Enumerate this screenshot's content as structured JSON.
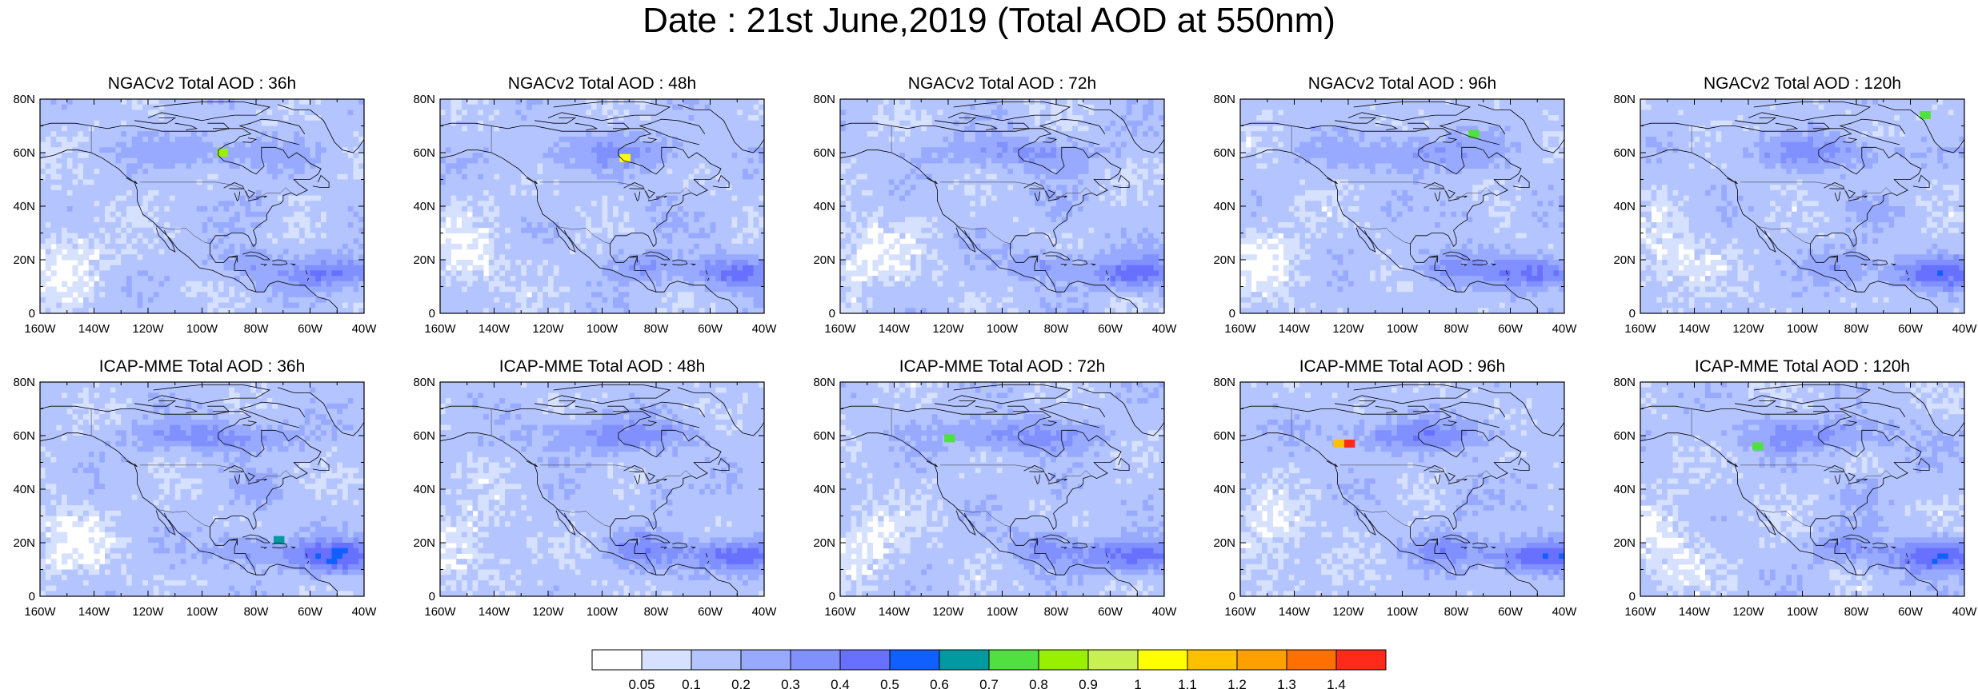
{
  "title": "Date : 21st June,2019 (Total AOD at 550nm)",
  "panels": [
    {
      "title": "NGACv2 Total AOD : 36h",
      "seed": 11,
      "intensity": 0.75
    },
    {
      "title": "NGACv2 Total AOD : 48h",
      "seed": 23,
      "intensity": 0.8
    },
    {
      "title": "NGACv2 Total AOD : 72h",
      "seed": 37,
      "intensity": 0.85
    },
    {
      "title": "NGACv2 Total AOD : 96h",
      "seed": 41,
      "intensity": 0.9
    },
    {
      "title": "NGACv2 Total AOD : 120h",
      "seed": 53,
      "intensity": 0.85
    },
    {
      "title": "ICAP-MME Total AOD : 36h",
      "seed": 61,
      "intensity": 1.0
    },
    {
      "title": "ICAP-MME Total AOD : 48h",
      "seed": 73,
      "intensity": 1.0
    },
    {
      "title": "ICAP-MME Total AOD : 72h",
      "seed": 89,
      "intensity": 1.0
    },
    {
      "title": "ICAP-MME Total AOD : 96h",
      "seed": 97,
      "intensity": 1.05
    },
    {
      "title": "ICAP-MME Total AOD : 120h",
      "seed": 101,
      "intensity": 0.95
    }
  ],
  "axes": {
    "lon_ticks": [
      "160W",
      "140W",
      "120W",
      "100W",
      "80W",
      "60W",
      "40W"
    ],
    "lat_ticks": [
      "80N",
      "60N",
      "40N",
      "20N",
      "0"
    ],
    "lon_range": [
      -160,
      -40
    ],
    "lat_range": [
      0,
      80
    ]
  },
  "colorbar": {
    "levels": [
      "0.05",
      "0.1",
      "0.2",
      "0.3",
      "0.4",
      "0.5",
      "0.6",
      "0.7",
      "0.8",
      "0.9",
      "1",
      "1.1",
      "1.2",
      "1.3",
      "1.4"
    ],
    "colors": [
      "#ffffff",
      "#d6e0ff",
      "#b4c4ff",
      "#98aaff",
      "#8090ff",
      "#6870ff",
      "#1060ff",
      "#009aa0",
      "#50e040",
      "#98f000",
      "#c8f050",
      "#ffff00",
      "#ffc000",
      "#ffa000",
      "#ff7000",
      "#ff2a1a"
    ]
  },
  "hotspots": [
    [
      {
        "lon": -93,
        "lat": 60,
        "c": 9
      }
    ],
    [
      {
        "lon": -92,
        "lat": 58,
        "c": 11
      }
    ],
    [],
    [
      {
        "lon": -74,
        "lat": 67,
        "c": 8
      }
    ],
    [
      {
        "lon": -55,
        "lat": 74,
        "c": 8
      }
    ],
    [
      {
        "lon": -72,
        "lat": 21,
        "c": 7
      }
    ],
    [],
    [
      {
        "lon": -120,
        "lat": 59,
        "c": 8
      }
    ],
    [
      {
        "lon": -120,
        "lat": 57,
        "c": 15
      },
      {
        "lon": -124,
        "lat": 57,
        "c": 12
      }
    ],
    [
      {
        "lon": -117,
        "lat": 56,
        "c": 8
      }
    ]
  ]
}
